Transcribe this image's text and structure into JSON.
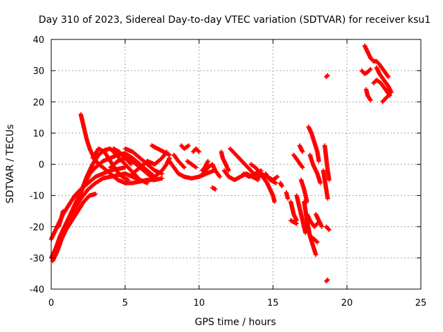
{
  "chart_data": {
    "type": "scatter",
    "title": "Day 310 of 2023, Sidereal Day-to-day VTEC variation (SDTVAR) for receiver ksu1",
    "xlabel": "GPS time / hours",
    "ylabel": "SDTVAR / TECUs",
    "xlim": [
      0,
      25
    ],
    "ylim": [
      -40,
      40
    ],
    "xticks": [
      0,
      5,
      10,
      15,
      20,
      25
    ],
    "yticks": [
      -40,
      -30,
      -20,
      -10,
      0,
      10,
      20,
      30,
      40
    ],
    "grid": true,
    "marker": "plus",
    "series_color": "#ff0000",
    "tracks": [
      [
        [
          0.0,
          -24
        ],
        [
          0.4,
          -20
        ],
        [
          0.8,
          -16
        ],
        [
          1.2,
          -13
        ],
        [
          1.6,
          -10
        ],
        [
          2.0,
          -8
        ],
        [
          2.5,
          -6
        ],
        [
          3.0,
          -4
        ],
        [
          3.5,
          -3
        ],
        [
          4.0,
          -2
        ],
        [
          4.5,
          -1.5
        ],
        [
          5.0,
          -1
        ]
      ],
      [
        [
          0.0,
          -30
        ],
        [
          0.3,
          -27
        ],
        [
          0.6,
          -23
        ],
        [
          1.0,
          -19
        ],
        [
          1.5,
          -15
        ],
        [
          2.0,
          -11
        ],
        [
          2.5,
          -8
        ],
        [
          3.0,
          -6
        ],
        [
          3.5,
          -4.5
        ],
        [
          4.0,
          -4
        ],
        [
          4.5,
          -3.5
        ],
        [
          5.0,
          -3
        ],
        [
          5.5,
          -4
        ],
        [
          6.0,
          -5
        ],
        [
          6.5,
          -6
        ]
      ],
      [
        [
          0.1,
          -31
        ],
        [
          0.4,
          -28
        ],
        [
          0.7,
          -24
        ],
        [
          1.0,
          -21
        ],
        [
          1.4,
          -18
        ],
        [
          1.8,
          -15
        ],
        [
          2.2,
          -12
        ],
        [
          2.6,
          -10
        ],
        [
          3.0,
          -9.5
        ]
      ],
      [
        [
          0.5,
          -20
        ],
        [
          0.7,
          -17
        ],
        [
          0.8,
          -15
        ]
      ],
      [
        [
          1.0,
          -19
        ],
        [
          1.4,
          -15
        ],
        [
          1.8,
          -11
        ],
        [
          2.2,
          -7
        ],
        [
          2.6,
          -3
        ],
        [
          3.0,
          -1
        ],
        [
          3.5,
          1
        ],
        [
          4.0,
          2
        ],
        [
          4.5,
          3
        ],
        [
          5.0,
          3.5
        ],
        [
          5.5,
          2
        ],
        [
          6.0,
          0
        ],
        [
          6.5,
          -2
        ],
        [
          7.0,
          -4
        ]
      ],
      [
        [
          1.5,
          -14
        ],
        [
          2.0,
          -9
        ],
        [
          2.4,
          -4
        ],
        [
          2.8,
          0
        ],
        [
          3.2,
          3
        ],
        [
          3.6,
          4.5
        ],
        [
          4.0,
          5
        ],
        [
          4.4,
          3
        ],
        [
          4.8,
          1
        ],
        [
          5.2,
          -1
        ],
        [
          5.6,
          -3
        ],
        [
          6.0,
          -5
        ]
      ],
      [
        [
          2.0,
          16
        ],
        [
          2.2,
          12
        ],
        [
          2.4,
          8
        ],
        [
          2.6,
          5
        ],
        [
          2.9,
          2
        ],
        [
          3.2,
          0
        ],
        [
          3.5,
          -1
        ],
        [
          4.0,
          -3
        ],
        [
          4.5,
          -5
        ],
        [
          5.0,
          -6
        ],
        [
          5.5,
          -6
        ],
        [
          6.0,
          -5.5
        ],
        [
          6.5,
          -5
        ],
        [
          7.0,
          -5
        ],
        [
          7.5,
          -4.5
        ]
      ],
      [
        [
          2.8,
          2
        ],
        [
          3.2,
          5
        ],
        [
          3.6,
          4
        ],
        [
          4.0,
          1
        ],
        [
          4.4,
          -2
        ],
        [
          4.8,
          -4
        ],
        [
          5.2,
          -5
        ]
      ],
      [
        [
          4.0,
          -1
        ],
        [
          4.5,
          1
        ],
        [
          5.0,
          2
        ],
        [
          5.5,
          1
        ],
        [
          6.0,
          -1
        ],
        [
          6.5,
          -3
        ],
        [
          7.0,
          -5
        ]
      ],
      [
        [
          4.2,
          5
        ],
        [
          4.6,
          4
        ],
        [
          5.0,
          2
        ],
        [
          5.4,
          0
        ]
      ],
      [
        [
          5.0,
          5
        ],
        [
          5.5,
          4
        ],
        [
          6.0,
          2
        ],
        [
          6.5,
          0
        ],
        [
          7.0,
          -2
        ],
        [
          7.5,
          -3
        ]
      ],
      [
        [
          5.5,
          -3
        ],
        [
          6.0,
          -1
        ],
        [
          6.5,
          1
        ],
        [
          7.0,
          0
        ],
        [
          7.5,
          2
        ],
        [
          7.8,
          4
        ]
      ],
      [
        [
          6.8,
          6
        ],
        [
          7.2,
          5
        ],
        [
          7.6,
          4
        ],
        [
          8.0,
          3
        ]
      ],
      [
        [
          7.0,
          -4
        ],
        [
          7.5,
          -2
        ],
        [
          7.8,
          0
        ],
        [
          8.0,
          2
        ]
      ],
      [
        [
          8.0,
          1
        ],
        [
          8.3,
          -1
        ],
        [
          8.6,
          -3
        ],
        [
          9.0,
          -4
        ],
        [
          9.5,
          -4.5
        ],
        [
          10.0,
          -4
        ],
        [
          10.5,
          -3
        ],
        [
          11.0,
          -2
        ]
      ],
      [
        [
          8.3,
          3
        ],
        [
          8.6,
          1
        ],
        [
          9.0,
          -1
        ]
      ],
      [
        [
          8.8,
          6
        ],
        [
          9.0,
          5
        ],
        [
          9.3,
          6
        ]
      ],
      [
        [
          9.2,
          1
        ],
        [
          9.5,
          0
        ],
        [
          9.8,
          -1
        ]
      ],
      [
        [
          9.6,
          4
        ],
        [
          9.8,
          5
        ],
        [
          10.0,
          4
        ]
      ],
      [
        [
          10.0,
          -4
        ],
        [
          10.3,
          -3
        ],
        [
          10.6,
          -1
        ],
        [
          10.9,
          0
        ],
        [
          11.1,
          -2
        ],
        [
          11.4,
          -4
        ]
      ],
      [
        [
          10.2,
          -2
        ],
        [
          10.4,
          -1
        ],
        [
          10.6,
          1
        ]
      ],
      [
        [
          10.9,
          -7.5
        ],
        [
          11.1,
          -8
        ]
      ],
      [
        [
          11.5,
          4
        ],
        [
          11.6,
          2
        ],
        [
          11.8,
          0
        ],
        [
          12.0,
          -2
        ]
      ],
      [
        [
          11.7,
          -2
        ],
        [
          12.0,
          -4
        ],
        [
          12.4,
          -5
        ],
        [
          12.8,
          -4
        ],
        [
          13.2,
          -3
        ],
        [
          13.6,
          -4
        ],
        [
          14.0,
          -5
        ]
      ],
      [
        [
          12.1,
          5
        ],
        [
          12.5,
          3
        ],
        [
          12.9,
          1
        ],
        [
          13.3,
          -1
        ],
        [
          13.7,
          -3
        ],
        [
          14.1,
          -4
        ]
      ],
      [
        [
          13.0,
          -3
        ],
        [
          13.4,
          -4
        ],
        [
          13.8,
          -3
        ],
        [
          14.2,
          -2
        ]
      ],
      [
        [
          13.5,
          0
        ],
        [
          13.8,
          -1
        ],
        [
          14.2,
          -3
        ],
        [
          14.6,
          -4
        ],
        [
          15.0,
          -5
        ],
        [
          15.3,
          -4
        ]
      ],
      [
        [
          14.0,
          -3
        ],
        [
          14.3,
          -4
        ],
        [
          14.6,
          -6
        ],
        [
          14.8,
          -8
        ],
        [
          15.0,
          -10
        ],
        [
          15.1,
          -12
        ]
      ],
      [
        [
          14.5,
          -3
        ],
        [
          14.8,
          -5
        ],
        [
          15.2,
          -6
        ]
      ],
      [
        [
          15.5,
          -6
        ],
        [
          15.6,
          -7
        ]
      ],
      [
        [
          15.9,
          -9
        ],
        [
          16.0,
          -11
        ]
      ],
      [
        [
          16.2,
          -12
        ],
        [
          16.4,
          -16
        ],
        [
          16.6,
          -18
        ]
      ],
      [
        [
          16.2,
          -18
        ],
        [
          16.6,
          -19
        ]
      ],
      [
        [
          16.4,
          3
        ],
        [
          16.7,
          1
        ],
        [
          17.0,
          -1
        ]
      ],
      [
        [
          16.6,
          -10
        ],
        [
          16.8,
          -14
        ],
        [
          17.0,
          -18
        ],
        [
          17.2,
          -22
        ]
      ],
      [
        [
          16.8,
          6
        ],
        [
          17.0,
          4
        ]
      ],
      [
        [
          16.9,
          -5
        ],
        [
          17.1,
          -8
        ],
        [
          17.3,
          -12
        ]
      ],
      [
        [
          17.1,
          -12
        ],
        [
          17.3,
          -18
        ],
        [
          17.5,
          -23
        ],
        [
          17.7,
          -26
        ],
        [
          17.9,
          -29
        ]
      ],
      [
        [
          17.3,
          -16
        ],
        [
          17.5,
          -18
        ],
        [
          17.8,
          -20
        ],
        [
          18.0,
          -19
        ]
      ],
      [
        [
          17.5,
          -23
        ],
        [
          17.8,
          -24
        ],
        [
          18.0,
          -25
        ]
      ],
      [
        [
          17.5,
          3
        ],
        [
          17.7,
          0
        ],
        [
          18.0,
          -3
        ],
        [
          18.2,
          -6
        ]
      ],
      [
        [
          17.4,
          12
        ],
        [
          17.6,
          10
        ],
        [
          17.8,
          7
        ],
        [
          18.0,
          4
        ],
        [
          18.1,
          1
        ]
      ],
      [
        [
          17.9,
          -16
        ],
        [
          18.1,
          -18
        ],
        [
          18.3,
          -20
        ]
      ],
      [
        [
          18.4,
          -2
        ],
        [
          18.5,
          -5
        ],
        [
          18.6,
          -8
        ],
        [
          18.7,
          -11
        ]
      ],
      [
        [
          18.5,
          6
        ],
        [
          18.6,
          2
        ],
        [
          18.7,
          -2
        ],
        [
          18.8,
          -5
        ]
      ],
      [
        [
          18.6,
          28
        ],
        [
          18.7,
          28.5
        ]
      ],
      [
        [
          18.6,
          -37.5
        ],
        [
          18.7,
          -37
        ]
      ],
      [
        [
          18.6,
          -20
        ],
        [
          18.7,
          -20.5
        ],
        [
          18.8,
          -21
        ]
      ],
      [
        [
          21.0,
          30
        ],
        [
          21.2,
          29
        ],
        [
          21.4,
          29.5
        ],
        [
          21.6,
          30.5
        ]
      ],
      [
        [
          21.2,
          38
        ],
        [
          21.4,
          36
        ],
        [
          21.6,
          34
        ],
        [
          21.8,
          33
        ],
        [
          22.0,
          33
        ],
        [
          22.2,
          32
        ],
        [
          22.5,
          30
        ],
        [
          22.8,
          28
        ]
      ],
      [
        [
          21.3,
          24
        ],
        [
          21.4,
          22
        ],
        [
          21.6,
          20.5
        ]
      ],
      [
        [
          21.8,
          26
        ],
        [
          22.0,
          27
        ],
        [
          22.3,
          26
        ],
        [
          22.6,
          24
        ],
        [
          22.9,
          22
        ]
      ],
      [
        [
          22.0,
          31
        ],
        [
          22.2,
          29
        ],
        [
          22.5,
          27
        ],
        [
          22.8,
          25
        ],
        [
          23.0,
          23
        ]
      ],
      [
        [
          22.4,
          20
        ],
        [
          22.6,
          21
        ],
        [
          22.8,
          22
        ]
      ]
    ]
  }
}
